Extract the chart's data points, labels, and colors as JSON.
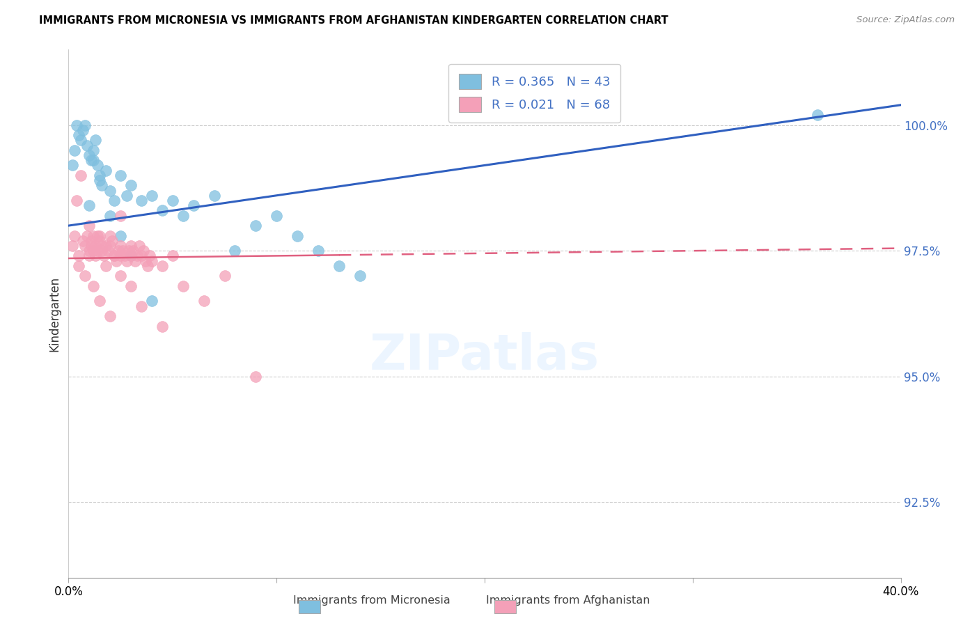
{
  "title": "IMMIGRANTS FROM MICRONESIA VS IMMIGRANTS FROM AFGHANISTAN KINDERGARTEN CORRELATION CHART",
  "source_text": "Source: ZipAtlas.com",
  "ylabel": "Kindergarten",
  "y_tick_values": [
    92.5,
    95.0,
    97.5,
    100.0
  ],
  "xlim": [
    0.0,
    40.0
  ],
  "ylim": [
    91.0,
    101.5
  ],
  "legend_r1": "R = 0.365",
  "legend_n1": "N = 43",
  "legend_r2": "R = 0.021",
  "legend_n2": "N = 68",
  "legend_label1": "Immigrants from Micronesia",
  "legend_label2": "Immigrants from Afghanistan",
  "blue_color": "#7fbfdf",
  "pink_color": "#f4a0b8",
  "blue_line_color": "#3060c0",
  "pink_line_color": "#e06080",
  "blue_dots_x": [
    0.2,
    0.3,
    0.4,
    0.5,
    0.6,
    0.7,
    0.8,
    0.9,
    1.0,
    1.1,
    1.2,
    1.3,
    1.4,
    1.5,
    1.6,
    1.8,
    2.0,
    2.2,
    2.5,
    2.8,
    3.0,
    3.5,
    4.0,
    4.5,
    5.0,
    5.5,
    6.0,
    7.0,
    8.0,
    9.0,
    10.0,
    11.0,
    12.0,
    13.0,
    14.0,
    1.0,
    1.2,
    1.5,
    2.0,
    2.5,
    3.0,
    4.0,
    36.0
  ],
  "blue_dots_y": [
    99.2,
    99.5,
    100.0,
    99.8,
    99.7,
    99.9,
    100.0,
    99.6,
    99.4,
    99.3,
    99.5,
    99.7,
    99.2,
    99.0,
    98.8,
    99.1,
    98.7,
    98.5,
    99.0,
    98.6,
    98.8,
    98.5,
    98.6,
    98.3,
    98.5,
    98.2,
    98.4,
    98.6,
    97.5,
    98.0,
    98.2,
    97.8,
    97.5,
    97.2,
    97.0,
    98.4,
    99.3,
    98.9,
    98.2,
    97.8,
    97.4,
    96.5,
    100.2
  ],
  "pink_dots_x": [
    0.2,
    0.3,
    0.4,
    0.5,
    0.6,
    0.7,
    0.8,
    0.9,
    1.0,
    1.0,
    1.0,
    1.1,
    1.1,
    1.2,
    1.2,
    1.3,
    1.3,
    1.4,
    1.5,
    1.5,
    1.6,
    1.7,
    1.8,
    1.9,
    2.0,
    2.0,
    2.1,
    2.2,
    2.3,
    2.4,
    2.5,
    2.5,
    2.6,
    2.7,
    2.8,
    2.9,
    3.0,
    3.0,
    3.1,
    3.2,
    3.3,
    3.4,
    3.5,
    3.6,
    3.7,
    3.8,
    3.9,
    4.0,
    4.5,
    5.0,
    5.5,
    6.5,
    7.5,
    9.0,
    0.5,
    0.8,
    1.2,
    1.5,
    2.0,
    2.5,
    3.0,
    2.5,
    3.5,
    4.5,
    1.8,
    2.2,
    1.6,
    1.4
  ],
  "pink_dots_y": [
    97.6,
    97.8,
    98.5,
    97.4,
    99.0,
    97.7,
    97.6,
    97.8,
    97.5,
    97.4,
    98.0,
    97.6,
    97.7,
    97.8,
    97.5,
    97.4,
    97.6,
    97.5,
    97.7,
    97.8,
    97.5,
    97.4,
    97.6,
    97.5,
    97.6,
    97.8,
    97.7,
    97.4,
    97.3,
    97.5,
    97.4,
    97.6,
    97.5,
    97.4,
    97.3,
    97.5,
    97.4,
    97.6,
    97.5,
    97.3,
    97.4,
    97.6,
    97.4,
    97.5,
    97.3,
    97.2,
    97.4,
    97.3,
    97.2,
    97.4,
    96.8,
    96.5,
    97.0,
    95.0,
    97.2,
    97.0,
    96.8,
    96.5,
    96.2,
    97.0,
    96.8,
    98.2,
    96.4,
    96.0,
    97.2,
    97.4,
    97.6,
    97.8
  ],
  "blue_line_x0": 0.0,
  "blue_line_x1": 40.0,
  "blue_line_y0": 98.0,
  "blue_line_y1": 100.4,
  "pink_line_x0": 0.0,
  "pink_line_x1": 40.0,
  "pink_line_y0": 97.35,
  "pink_line_y1": 97.55,
  "pink_solid_end_x": 13.0
}
